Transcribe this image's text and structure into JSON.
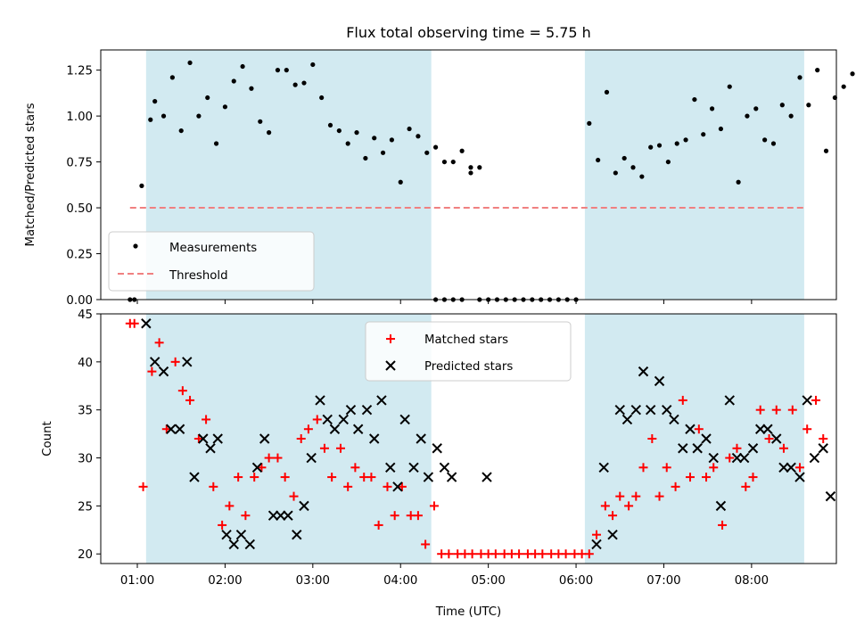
{
  "chart_data": [
    {
      "type": "scatter",
      "title": "Flux total observing time = 5.75 h",
      "xlabel": "",
      "ylabel": "Matched/Predicted stars",
      "ylim": [
        0,
        1.36
      ],
      "yticks": [
        "0.00",
        "0.25",
        "0.50",
        "0.75",
        "1.00",
        "1.25"
      ],
      "grid": false,
      "legend_position": "lower-left",
      "shaded_intervals": [
        [
          "01:06",
          "04:21"
        ],
        [
          "06:06",
          "08:36"
        ]
      ],
      "shade_color": "#add8e6",
      "series": [
        {
          "name": "Measurements",
          "color": "#000000",
          "marker": "dot",
          "points": [
            [
              "00:55",
              0.0
            ],
            [
              "00:58",
              0.0
            ],
            [
              "01:03",
              0.62
            ],
            [
              "01:09",
              0.98
            ],
            [
              "01:12",
              1.08
            ],
            [
              "01:18",
              1.0
            ],
            [
              "01:24",
              1.21
            ],
            [
              "01:30",
              0.92
            ],
            [
              "01:36",
              1.29
            ],
            [
              "01:42",
              1.0
            ],
            [
              "01:48",
              1.1
            ],
            [
              "01:54",
              0.85
            ],
            [
              "01:60",
              1.05
            ],
            [
              "02:06",
              1.19
            ],
            [
              "02:12",
              1.27
            ],
            [
              "02:18",
              1.15
            ],
            [
              "02:24",
              0.97
            ],
            [
              "02:30",
              0.91
            ],
            [
              "02:36",
              1.25
            ],
            [
              "02:42",
              1.25
            ],
            [
              "02:48",
              1.17
            ],
            [
              "02:54",
              1.18
            ],
            [
              "03:00",
              1.28
            ],
            [
              "03:06",
              1.1
            ],
            [
              "03:12",
              0.95
            ],
            [
              "03:18",
              0.92
            ],
            [
              "03:24",
              0.85
            ],
            [
              "03:30",
              0.91
            ],
            [
              "03:36",
              0.77
            ],
            [
              "03:42",
              0.88
            ],
            [
              "03:48",
              0.8
            ],
            [
              "03:54",
              0.87
            ],
            [
              "04:00",
              0.64
            ],
            [
              "04:06",
              0.93
            ],
            [
              "04:12",
              0.89
            ],
            [
              "04:18",
              0.8
            ],
            [
              "04:24",
              0.83
            ],
            [
              "04:30",
              0.75
            ],
            [
              "04:36",
              0.75
            ],
            [
              "04:42",
              0.81
            ],
            [
              "04:48",
              0.69
            ],
            [
              "04:54",
              0.72
            ],
            [
              "04:24",
              0.0
            ],
            [
              "04:30",
              0.0
            ],
            [
              "04:36",
              0.0
            ],
            [
              "04:42",
              0.0
            ],
            [
              "04:48",
              0.72
            ],
            [
              "04:54",
              0.0
            ],
            [
              "05:00",
              0.0
            ],
            [
              "05:06",
              0.0
            ],
            [
              "05:12",
              0.0
            ],
            [
              "05:18",
              0.0
            ],
            [
              "05:24",
              0.0
            ],
            [
              "05:30",
              0.0
            ],
            [
              "05:36",
              0.0
            ],
            [
              "05:42",
              0.0
            ],
            [
              "05:48",
              0.0
            ],
            [
              "05:54",
              0.0
            ],
            [
              "06:00",
              0.0
            ],
            [
              "06:09",
              0.96
            ],
            [
              "06:15",
              0.76
            ],
            [
              "06:21",
              1.13
            ],
            [
              "06:27",
              0.69
            ],
            [
              "06:33",
              0.77
            ],
            [
              "06:39",
              0.72
            ],
            [
              "06:45",
              0.67
            ],
            [
              "06:51",
              0.83
            ],
            [
              "06:57",
              0.84
            ],
            [
              "07:03",
              0.75
            ],
            [
              "07:09",
              0.85
            ],
            [
              "07:15",
              0.87
            ],
            [
              "07:21",
              1.09
            ],
            [
              "07:27",
              0.9
            ],
            [
              "07:33",
              1.04
            ],
            [
              "07:39",
              0.93
            ],
            [
              "07:45",
              1.16
            ],
            [
              "07:51",
              0.64
            ],
            [
              "07:57",
              1.0
            ],
            [
              "08:03",
              1.04
            ],
            [
              "08:09",
              0.87
            ],
            [
              "08:15",
              0.85
            ],
            [
              "08:21",
              1.06
            ],
            [
              "08:27",
              1.0
            ],
            [
              "08:33",
              1.21
            ],
            [
              "08:39",
              1.06
            ],
            [
              "08:45",
              1.25
            ],
            [
              "08:51",
              0.81
            ],
            [
              "08:57",
              1.1
            ],
            [
              "09:03",
              1.16
            ],
            [
              "09:09",
              1.23
            ]
          ]
        },
        {
          "name": "Threshold",
          "color": "#f08080",
          "style": "dashed",
          "points": [
            [
              "00:55",
              0.5
            ],
            [
              "08:37",
              0.5
            ]
          ]
        }
      ]
    },
    {
      "type": "scatter",
      "title": "",
      "xlabel": "Time (UTC)",
      "ylabel": "Count",
      "ylim": [
        19,
        45
      ],
      "yticks": [
        "20",
        "25",
        "30",
        "35",
        "40",
        "45"
      ],
      "xticks": [
        "01:00",
        "02:00",
        "03:00",
        "04:00",
        "05:00",
        "06:00",
        "07:00",
        "08:00"
      ],
      "grid": false,
      "legend_position": "top-center",
      "shaded_intervals": [
        [
          "01:06",
          "04:21"
        ],
        [
          "06:06",
          "08:36"
        ]
      ],
      "shade_color": "#add8e6",
      "series": [
        {
          "name": "Matched stars",
          "color": "#ff0000",
          "marker": "plus",
          "points": [
            [
              "00:55",
              44
            ],
            [
              "00:58",
              44
            ],
            [
              "01:04",
              27
            ],
            [
              "01:10",
              39
            ],
            [
              "01:15",
              42
            ],
            [
              "01:20",
              33
            ],
            [
              "01:26",
              40
            ],
            [
              "01:31",
              37
            ],
            [
              "01:36",
              36
            ],
            [
              "01:42",
              32
            ],
            [
              "01:47",
              34
            ],
            [
              "01:52",
              27
            ],
            [
              "01:58",
              23
            ],
            [
              "02:03",
              25
            ],
            [
              "02:09",
              28
            ],
            [
              "02:14",
              24
            ],
            [
              "02:20",
              28
            ],
            [
              "02:25",
              29
            ],
            [
              "02:30",
              30
            ],
            [
              "02:36",
              30
            ],
            [
              "02:41",
              28
            ],
            [
              "02:47",
              26
            ],
            [
              "02:52",
              32
            ],
            [
              "02:57",
              33
            ],
            [
              "03:03",
              34
            ],
            [
              "03:08",
              31
            ],
            [
              "03:13",
              28
            ],
            [
              "03:19",
              31
            ],
            [
              "03:24",
              27
            ],
            [
              "03:29",
              29
            ],
            [
              "03:35",
              28
            ],
            [
              "03:40",
              28
            ],
            [
              "03:45",
              23
            ],
            [
              "03:51",
              27
            ],
            [
              "03:56",
              24
            ],
            [
              "04:01",
              27
            ],
            [
              "04:07",
              24
            ],
            [
              "04:12",
              24
            ],
            [
              "04:17",
              21
            ],
            [
              "04:23",
              25
            ],
            [
              "04:28",
              20
            ],
            [
              "04:33",
              20
            ],
            [
              "04:39",
              20
            ],
            [
              "04:44",
              20
            ],
            [
              "04:49",
              20
            ],
            [
              "04:55",
              20
            ],
            [
              "05:00",
              20
            ],
            [
              "05:05",
              20
            ],
            [
              "05:11",
              20
            ],
            [
              "05:16",
              20
            ],
            [
              "05:21",
              20
            ],
            [
              "05:27",
              20
            ],
            [
              "05:32",
              20
            ],
            [
              "05:37",
              20
            ],
            [
              "05:43",
              20
            ],
            [
              "05:48",
              20
            ],
            [
              "05:53",
              20
            ],
            [
              "05:59",
              20
            ],
            [
              "06:04",
              20
            ],
            [
              "06:09",
              20
            ],
            [
              "06:14",
              22
            ],
            [
              "06:20",
              25
            ],
            [
              "06:25",
              24
            ],
            [
              "06:30",
              26
            ],
            [
              "06:36",
              25
            ],
            [
              "06:41",
              26
            ],
            [
              "06:46",
              29
            ],
            [
              "06:52",
              32
            ],
            [
              "06:57",
              26
            ],
            [
              "07:02",
              29
            ],
            [
              "07:08",
              27
            ],
            [
              "07:13",
              36
            ],
            [
              "07:18",
              28
            ],
            [
              "07:24",
              33
            ],
            [
              "07:29",
              28
            ],
            [
              "07:34",
              29
            ],
            [
              "07:40",
              23
            ],
            [
              "07:45",
              30
            ],
            [
              "07:50",
              31
            ],
            [
              "07:56",
              27
            ],
            [
              "08:01",
              28
            ],
            [
              "08:06",
              35
            ],
            [
              "08:12",
              32
            ],
            [
              "08:17",
              35
            ],
            [
              "08:22",
              31
            ],
            [
              "08:28",
              35
            ],
            [
              "08:33",
              29
            ],
            [
              "08:38",
              33
            ],
            [
              "08:44",
              36
            ],
            [
              "08:49",
              32
            ]
          ]
        },
        {
          "name": "Predicted stars",
          "color": "#000000",
          "marker": "x",
          "points": [
            [
              "01:06",
              44
            ],
            [
              "01:12",
              40
            ],
            [
              "01:18",
              39
            ],
            [
              "01:23",
              33
            ],
            [
              "01:29",
              33
            ],
            [
              "01:34",
              40
            ],
            [
              "01:39",
              28
            ],
            [
              "01:45",
              32
            ],
            [
              "01:50",
              31
            ],
            [
              "01:55",
              32
            ],
            [
              "02:01",
              22
            ],
            [
              "02:06",
              21
            ],
            [
              "02:11",
              22
            ],
            [
              "02:17",
              21
            ],
            [
              "02:22",
              29
            ],
            [
              "02:27",
              32
            ],
            [
              "02:33",
              24
            ],
            [
              "02:38",
              24
            ],
            [
              "02:43",
              24
            ],
            [
              "02:49",
              22
            ],
            [
              "02:54",
              25
            ],
            [
              "02:59",
              30
            ],
            [
              "03:05",
              36
            ],
            [
              "03:10",
              34
            ],
            [
              "03:15",
              33
            ],
            [
              "03:21",
              34
            ],
            [
              "03:26",
              35
            ],
            [
              "03:31",
              33
            ],
            [
              "03:37",
              35
            ],
            [
              "03:42",
              32
            ],
            [
              "03:47",
              36
            ],
            [
              "03:53",
              29
            ],
            [
              "03:58",
              27
            ],
            [
              "04:03",
              34
            ],
            [
              "04:09",
              29
            ],
            [
              "04:14",
              32
            ],
            [
              "04:19",
              28
            ],
            [
              "04:25",
              31
            ],
            [
              "04:30",
              29
            ],
            [
              "04:35",
              28
            ],
            [
              "04:59",
              28
            ],
            [
              "06:14",
              21
            ],
            [
              "06:19",
              29
            ],
            [
              "06:25",
              22
            ],
            [
              "06:30",
              35
            ],
            [
              "06:35",
              34
            ],
            [
              "06:41",
              35
            ],
            [
              "06:46",
              39
            ],
            [
              "06:51",
              35
            ],
            [
              "06:57",
              38
            ],
            [
              "07:02",
              35
            ],
            [
              "07:07",
              34
            ],
            [
              "07:13",
              31
            ],
            [
              "07:18",
              33
            ],
            [
              "07:23",
              31
            ],
            [
              "07:29",
              32
            ],
            [
              "07:34",
              30
            ],
            [
              "07:39",
              25
            ],
            [
              "07:45",
              36
            ],
            [
              "07:50",
              30
            ],
            [
              "07:55",
              30
            ],
            [
              "08:01",
              31
            ],
            [
              "08:06",
              33
            ],
            [
              "08:11",
              33
            ],
            [
              "08:17",
              32
            ],
            [
              "08:22",
              29
            ],
            [
              "08:27",
              29
            ],
            [
              "08:33",
              28
            ],
            [
              "08:38",
              36
            ],
            [
              "08:43",
              30
            ],
            [
              "08:49",
              31
            ],
            [
              "08:54",
              26
            ]
          ]
        }
      ]
    }
  ]
}
